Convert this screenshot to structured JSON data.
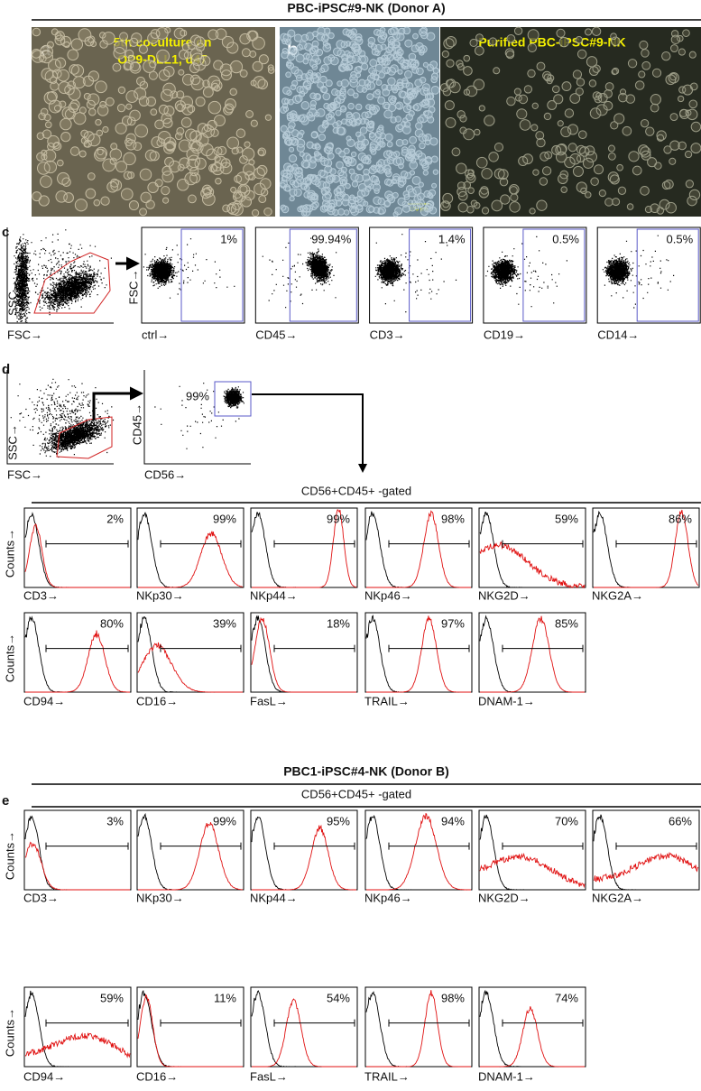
{
  "title_a": "PBC-iPSC#9-NK (Donor A)",
  "panel_a": {
    "label": "a",
    "caption": [
      "5th coculture on",
      "OP9-DLL1, d47"
    ]
  },
  "panel_b": {
    "label": "b",
    "caption": "Purified PBC-iPSC#9-NK",
    "scale": "100 µm"
  },
  "panel_c": {
    "label": "c",
    "gate_plot": {
      "x_label": "FSC→",
      "y_label": "SSC→"
    },
    "y_label": "FSC→",
    "plots": [
      {
        "marker": "ctrl→",
        "percent": "1%"
      },
      {
        "marker": "CD45→",
        "percent": "99.94%"
      },
      {
        "marker": "CD3→",
        "percent": "1.4%"
      },
      {
        "marker": "CD19→",
        "percent": "0.5%"
      },
      {
        "marker": "CD14→",
        "percent": "0.5%"
      }
    ]
  },
  "panel_d": {
    "label": "d",
    "gate_plot": {
      "x_label": "FSC→",
      "y_label": "SSC→"
    },
    "cd_plot": {
      "x_label": "CD56→",
      "y_label": "CD45→",
      "percent": "99%"
    },
    "gating": "CD56+CD45+ -gated",
    "y_label": "Counts→",
    "rows": [
      [
        {
          "marker": "CD3→",
          "percent": "2%"
        },
        {
          "marker": "NKp30→",
          "percent": "99%"
        },
        {
          "marker": "NKp44→",
          "percent": "99%"
        },
        {
          "marker": "NKp46→",
          "percent": "98%"
        },
        {
          "marker": "NKG2D→",
          "percent": "59%"
        },
        {
          "marker": "NKG2A→",
          "percent": "86%"
        }
      ],
      [
        {
          "marker": "CD94→",
          "percent": "80%"
        },
        {
          "marker": "CD16→",
          "percent": "39%"
        },
        {
          "marker": "FasL→",
          "percent": "18%"
        },
        {
          "marker": "TRAIL→",
          "percent": "97%"
        },
        {
          "marker": "DNAM-1→",
          "percent": "85%"
        }
      ]
    ]
  },
  "title_b": "PBC1-iPSC#4-NK (Donor B)",
  "panel_e": {
    "label": "e",
    "gating": "CD56+CD45+ -gated",
    "y_label": "Counts→",
    "rows": [
      [
        {
          "marker": "CD3→",
          "percent": "3%"
        },
        {
          "marker": "NKp30→",
          "percent": "99%"
        },
        {
          "marker": "NKp44→",
          "percent": "95%"
        },
        {
          "marker": "NKp46→",
          "percent": "94%"
        },
        {
          "marker": "NKG2D→",
          "percent": "70%"
        },
        {
          "marker": "NKG2A→",
          "percent": "66%"
        }
      ],
      [
        {
          "marker": "CD94→",
          "percent": "59%"
        },
        {
          "marker": "CD16→",
          "percent": "11%"
        },
        {
          "marker": "FasL→",
          "percent": "54%"
        },
        {
          "marker": "TRAIL→",
          "percent": "98%"
        },
        {
          "marker": "DNAM-1→",
          "percent": "74%"
        }
      ]
    ]
  }
}
